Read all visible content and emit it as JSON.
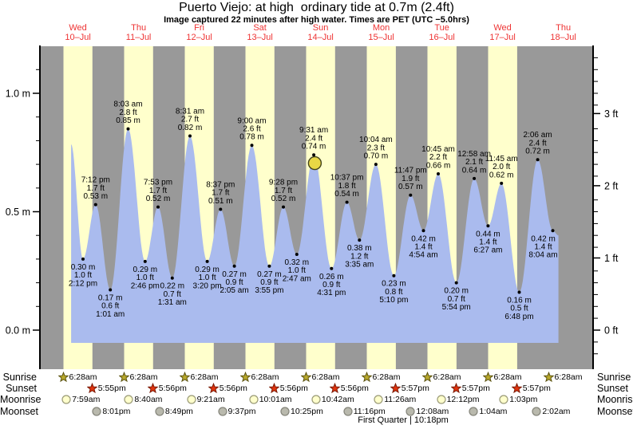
{
  "title": "Puerto Viejo: at high  ordinary tide at 0.7m (2.4ft)",
  "subtitle": "Image captured 22 minutes after high water. Times are PET (UTC −5.0hrs)",
  "colors": {
    "night_band": "#999999",
    "day_band": "#ffffcc",
    "tide_fill": "#aabbee",
    "day_label": "#ee3333",
    "capture_marker_fill": "#e8d845",
    "sunrise_star": "#b9a92c",
    "sunset_star": "#e1340f",
    "moonrise_circle": "#ffffcc",
    "moonset_circle": "#b9b9ad",
    "axis": "#000000"
  },
  "chart_data": {
    "type": "area",
    "title": "Puerto Viejo tide height",
    "ylabel_left": "m",
    "ylabel_right": "ft",
    "ylim": [
      -0.17,
      1.2
    ],
    "y_axis_left": {
      "ticks": [
        "0.0 m",
        "0.5 m",
        "1.0 m"
      ],
      "values": [
        0.0,
        0.5,
        1.0
      ]
    },
    "y_axis_right": {
      "ticks": [
        "0 ft",
        "1 ft",
        "2 ft",
        "3 ft"
      ],
      "values": [
        0,
        1,
        2,
        3
      ]
    },
    "days": [
      {
        "name": "Wed",
        "date": "10–Jul"
      },
      {
        "name": "Thu",
        "date": "11–Jul"
      },
      {
        "name": "Fri",
        "date": "12–Jul"
      },
      {
        "name": "Sat",
        "date": "13–Jul"
      },
      {
        "name": "Sun",
        "date": "14–Jul"
      },
      {
        "name": "Mon",
        "date": "15–Jul"
      },
      {
        "name": "Tue",
        "date": "16–Jul"
      },
      {
        "name": "Wed",
        "date": "17–Jul"
      },
      {
        "name": "Thu",
        "date": "18–Jul"
      }
    ],
    "extremes": [
      {
        "day": 0,
        "edge": true,
        "t": 9.5,
        "m": 0.785
      },
      {
        "day": 0,
        "type": "L",
        "time": "2:12 pm",
        "height_m": "0.30 m",
        "height_ft": "1.0 ft"
      },
      {
        "day": 0,
        "type": "H",
        "time": "7:12 pm",
        "height_m": "0.53 m",
        "height_ft": "1.7 ft"
      },
      {
        "day": 1,
        "type": "L",
        "time": "1:01 am",
        "height_m": "0.17 m",
        "height_ft": "0.6 ft"
      },
      {
        "day": 1,
        "type": "H",
        "time": "8:03 am",
        "height_m": "0.85 m",
        "height_ft": "2.8 ft"
      },
      {
        "day": 1,
        "type": "L",
        "time": "2:46 pm",
        "height_m": "0.29 m",
        "height_ft": "1.0 ft"
      },
      {
        "day": 1,
        "type": "H",
        "time": "7:53 pm",
        "height_m": "0.52 m",
        "height_ft": "1.7 ft"
      },
      {
        "day": 2,
        "type": "L",
        "time": "1:31 am",
        "height_m": "0.22 m",
        "height_ft": "0.7 ft"
      },
      {
        "day": 2,
        "type": "H",
        "time": "8:31 am",
        "height_m": "0.82 m",
        "height_ft": "2.7 ft"
      },
      {
        "day": 2,
        "type": "L",
        "time": "3:20 pm",
        "height_m": "0.29 m",
        "height_ft": "1.0 ft"
      },
      {
        "day": 2,
        "type": "H",
        "time": "8:37 pm",
        "height_m": "0.51 m",
        "height_ft": "1.7 ft"
      },
      {
        "day": 3,
        "type": "L",
        "time": "2:05 am",
        "height_m": "0.27 m",
        "height_ft": "0.9 ft"
      },
      {
        "day": 3,
        "type": "H",
        "time": "9:00 am",
        "height_m": "0.78 m",
        "height_ft": "2.6 ft"
      },
      {
        "day": 3,
        "type": "L",
        "time": "3:55 pm",
        "height_m": "0.27 m",
        "height_ft": "0.9 ft"
      },
      {
        "day": 3,
        "type": "H",
        "time": "9:28 pm",
        "height_m": "0.52 m",
        "height_ft": "1.7 ft"
      },
      {
        "day": 4,
        "type": "L",
        "time": "2:47 am",
        "height_m": "0.32 m",
        "height_ft": "1.0 ft"
      },
      {
        "day": 4,
        "type": "H",
        "time": "9:31 am",
        "height_m": "0.74 m",
        "height_ft": "2.4 ft"
      },
      {
        "day": 4,
        "type": "L",
        "time": "4:31 pm",
        "height_m": "0.26 m",
        "height_ft": "0.9 ft"
      },
      {
        "day": 4,
        "type": "H",
        "time": "10:37 pm",
        "height_m": "0.54 m",
        "height_ft": "1.8 ft"
      },
      {
        "day": 5,
        "type": "L",
        "time": "3:35 am",
        "height_m": "0.38 m",
        "height_ft": "1.2 ft"
      },
      {
        "day": 5,
        "type": "H",
        "time": "10:04 am",
        "height_m": "0.70 m",
        "height_ft": "2.3 ft"
      },
      {
        "day": 5,
        "type": "L",
        "time": "5:10 pm",
        "height_m": "0.23 m",
        "height_ft": "0.8 ft"
      },
      {
        "day": 5,
        "type": "H",
        "time": "11:47 pm",
        "height_m": "0.57 m",
        "height_ft": "1.9 ft"
      },
      {
        "day": 6,
        "type": "L",
        "time": "4:54 am",
        "height_m": "0.42 m",
        "height_ft": "1.4 ft"
      },
      {
        "day": 6,
        "type": "H",
        "time": "10:45 am",
        "height_m": "0.66 m",
        "height_ft": "2.2 ft"
      },
      {
        "day": 6,
        "type": "L",
        "time": "5:54 pm",
        "height_m": "0.20 m",
        "height_ft": "0.7 ft"
      },
      {
        "day": 7,
        "type": "H",
        "time": "12:58 am",
        "height_m": "0.64 m",
        "height_ft": "2.1 ft"
      },
      {
        "day": 7,
        "type": "L",
        "time": "6:27 am",
        "height_m": "0.44 m",
        "height_ft": "1.4 ft"
      },
      {
        "day": 7,
        "type": "H",
        "time": "11:45 am",
        "height_m": "0.62 m",
        "height_ft": "2.0 ft"
      },
      {
        "day": 7,
        "type": "L",
        "time": "6:48 pm",
        "height_m": "0.16 m",
        "height_ft": "0.5 ft"
      },
      {
        "day": 8,
        "type": "H",
        "time": "2:06 am",
        "height_m": "0.72 m",
        "height_ft": "2.4 ft"
      },
      {
        "day": 8,
        "type": "L",
        "time": "8:04 am",
        "height_m": "0.42 m",
        "height_ft": "1.4 ft",
        "dx": -12
      },
      {
        "day": 8,
        "edge": true,
        "t": 10.3,
        "m": 0.4
      }
    ],
    "capture_marker": {
      "day": 4,
      "t": 9.93,
      "m": 0.705
    },
    "astro_rows": [
      {
        "label": "Sunrise",
        "icon": "sunrise-star",
        "entries": [
          {
            "day": 0,
            "time": "6:28am"
          },
          {
            "day": 1,
            "time": "6:28am"
          },
          {
            "day": 2,
            "time": "6:28am"
          },
          {
            "day": 3,
            "time": "6:28am"
          },
          {
            "day": 4,
            "time": "6:28am"
          },
          {
            "day": 5,
            "time": "6:28am"
          },
          {
            "day": 6,
            "time": "6:28am"
          },
          {
            "day": 7,
            "time": "6:28am"
          },
          {
            "day": 8,
            "time": "6:28am"
          }
        ]
      },
      {
        "label": "Sunset",
        "icon": "sunset-star",
        "entries": [
          {
            "day": 0,
            "time": "5:55pm"
          },
          {
            "day": 1,
            "time": "5:56pm"
          },
          {
            "day": 2,
            "time": "5:56pm"
          },
          {
            "day": 3,
            "time": "5:56pm"
          },
          {
            "day": 4,
            "time": "5:56pm"
          },
          {
            "day": 5,
            "time": "5:57pm"
          },
          {
            "day": 6,
            "time": "5:57pm"
          },
          {
            "day": 7,
            "time": "5:57pm"
          }
        ]
      },
      {
        "label": "Moonrise",
        "icon": "moonrise-circle",
        "entries": [
          {
            "day": 0,
            "time": "7:59am"
          },
          {
            "day": 1,
            "time": "8:40am"
          },
          {
            "day": 2,
            "time": "9:21am"
          },
          {
            "day": 3,
            "time": "10:01am"
          },
          {
            "day": 4,
            "time": "10:42am"
          },
          {
            "day": 5,
            "time": "11:26am"
          },
          {
            "day": 6,
            "time": "12:12pm"
          },
          {
            "day": 7,
            "time": "1:03pm"
          }
        ]
      },
      {
        "label": "Moonset",
        "icon": "moonset-circle",
        "entries": [
          {
            "day": 0,
            "time": "8:01pm"
          },
          {
            "day": 1,
            "time": "8:49pm"
          },
          {
            "day": 2,
            "time": "9:37pm"
          },
          {
            "day": 3,
            "time": "10:25pm"
          },
          {
            "day": 4,
            "time": "11:16pm"
          },
          {
            "day": 6,
            "time": "12:08am"
          },
          {
            "day": 7,
            "time": "1:04am"
          },
          {
            "day": 8,
            "time": "2:02am"
          }
        ]
      }
    ],
    "moon_phase": "First Quarter | 10:18pm"
  }
}
